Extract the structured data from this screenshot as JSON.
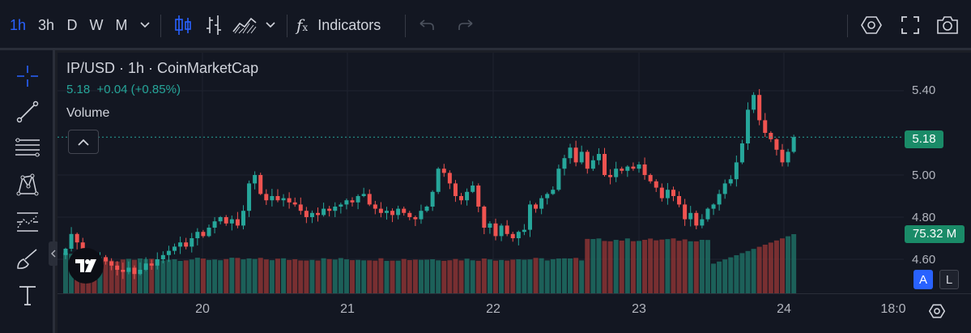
{
  "toolbar": {
    "intervals": [
      "1h",
      "3h",
      "D",
      "W",
      "M"
    ],
    "active_interval": "1h",
    "indicators_label": "Indicators"
  },
  "legend": {
    "title": "IP/USD · 1h · CoinMarketCap",
    "price": "5.18",
    "change": "+0.04 (+0.85%)",
    "volume_label": "Volume"
  },
  "price_axis": {
    "ticks": [
      "5.40",
      "5.00",
      "4.80",
      "4.60"
    ],
    "current_price": "5.18",
    "volume_value": "75.32 M"
  },
  "time_axis": {
    "ticks": [
      "20",
      "21",
      "22",
      "23",
      "24",
      "18:0"
    ]
  },
  "scale_buttons": {
    "auto": "A",
    "log": "L"
  },
  "logo_text": "TV",
  "colors": {
    "up": "#26a69a",
    "down": "#ef5350",
    "accent": "#2962ff",
    "background": "#131722"
  },
  "chart_data": {
    "type": "candlestick",
    "symbol": "IP/USD",
    "interval": "1h",
    "x_ticks": [
      "20",
      "21",
      "22",
      "23",
      "24",
      "18:0"
    ],
    "y_ticks": [
      5.4,
      5.0,
      4.8,
      4.6
    ],
    "last_price": 5.18,
    "last_volume": "75.32 M",
    "close": [
      4.65,
      4.72,
      4.68,
      4.63,
      4.6,
      4.58,
      4.61,
      4.59,
      4.57,
      4.55,
      4.54,
      4.56,
      4.53,
      4.55,
      4.58,
      4.57,
      4.6,
      4.62,
      4.64,
      4.66,
      4.68,
      4.66,
      4.7,
      4.73,
      4.71,
      4.75,
      4.78,
      4.8,
      4.77,
      4.79,
      4.76,
      4.83,
      4.96,
      5.0,
      4.91,
      4.88,
      4.9,
      4.88,
      4.89,
      4.87,
      4.86,
      4.83,
      4.8,
      4.82,
      4.81,
      4.84,
      4.83,
      4.85,
      4.86,
      4.88,
      4.87,
      4.9,
      4.91,
      4.86,
      4.84,
      4.82,
      4.83,
      4.81,
      4.84,
      4.82,
      4.8,
      4.79,
      4.83,
      4.85,
      4.92,
      5.03,
      5.01,
      4.96,
      4.9,
      4.88,
      4.92,
      4.95,
      4.85,
      4.75,
      4.77,
      4.71,
      4.76,
      4.72,
      4.7,
      4.73,
      4.74,
      4.86,
      4.84,
      4.89,
      4.91,
      4.93,
      5.03,
      5.08,
      5.13,
      5.06,
      5.11,
      5.03,
      5.07,
      5.1,
      5.0,
      4.99,
      5.03,
      5.02,
      5.04,
      5.03,
      5.05,
      5.0,
      4.97,
      4.94,
      4.89,
      4.93,
      4.9,
      4.86,
      4.79,
      4.82,
      4.76,
      4.79,
      4.84,
      4.86,
      4.91,
      4.96,
      4.98,
      5.06,
      5.15,
      5.31,
      5.38,
      5.26,
      5.2,
      5.17,
      5.12,
      5.06,
      5.11,
      5.18
    ]
  }
}
